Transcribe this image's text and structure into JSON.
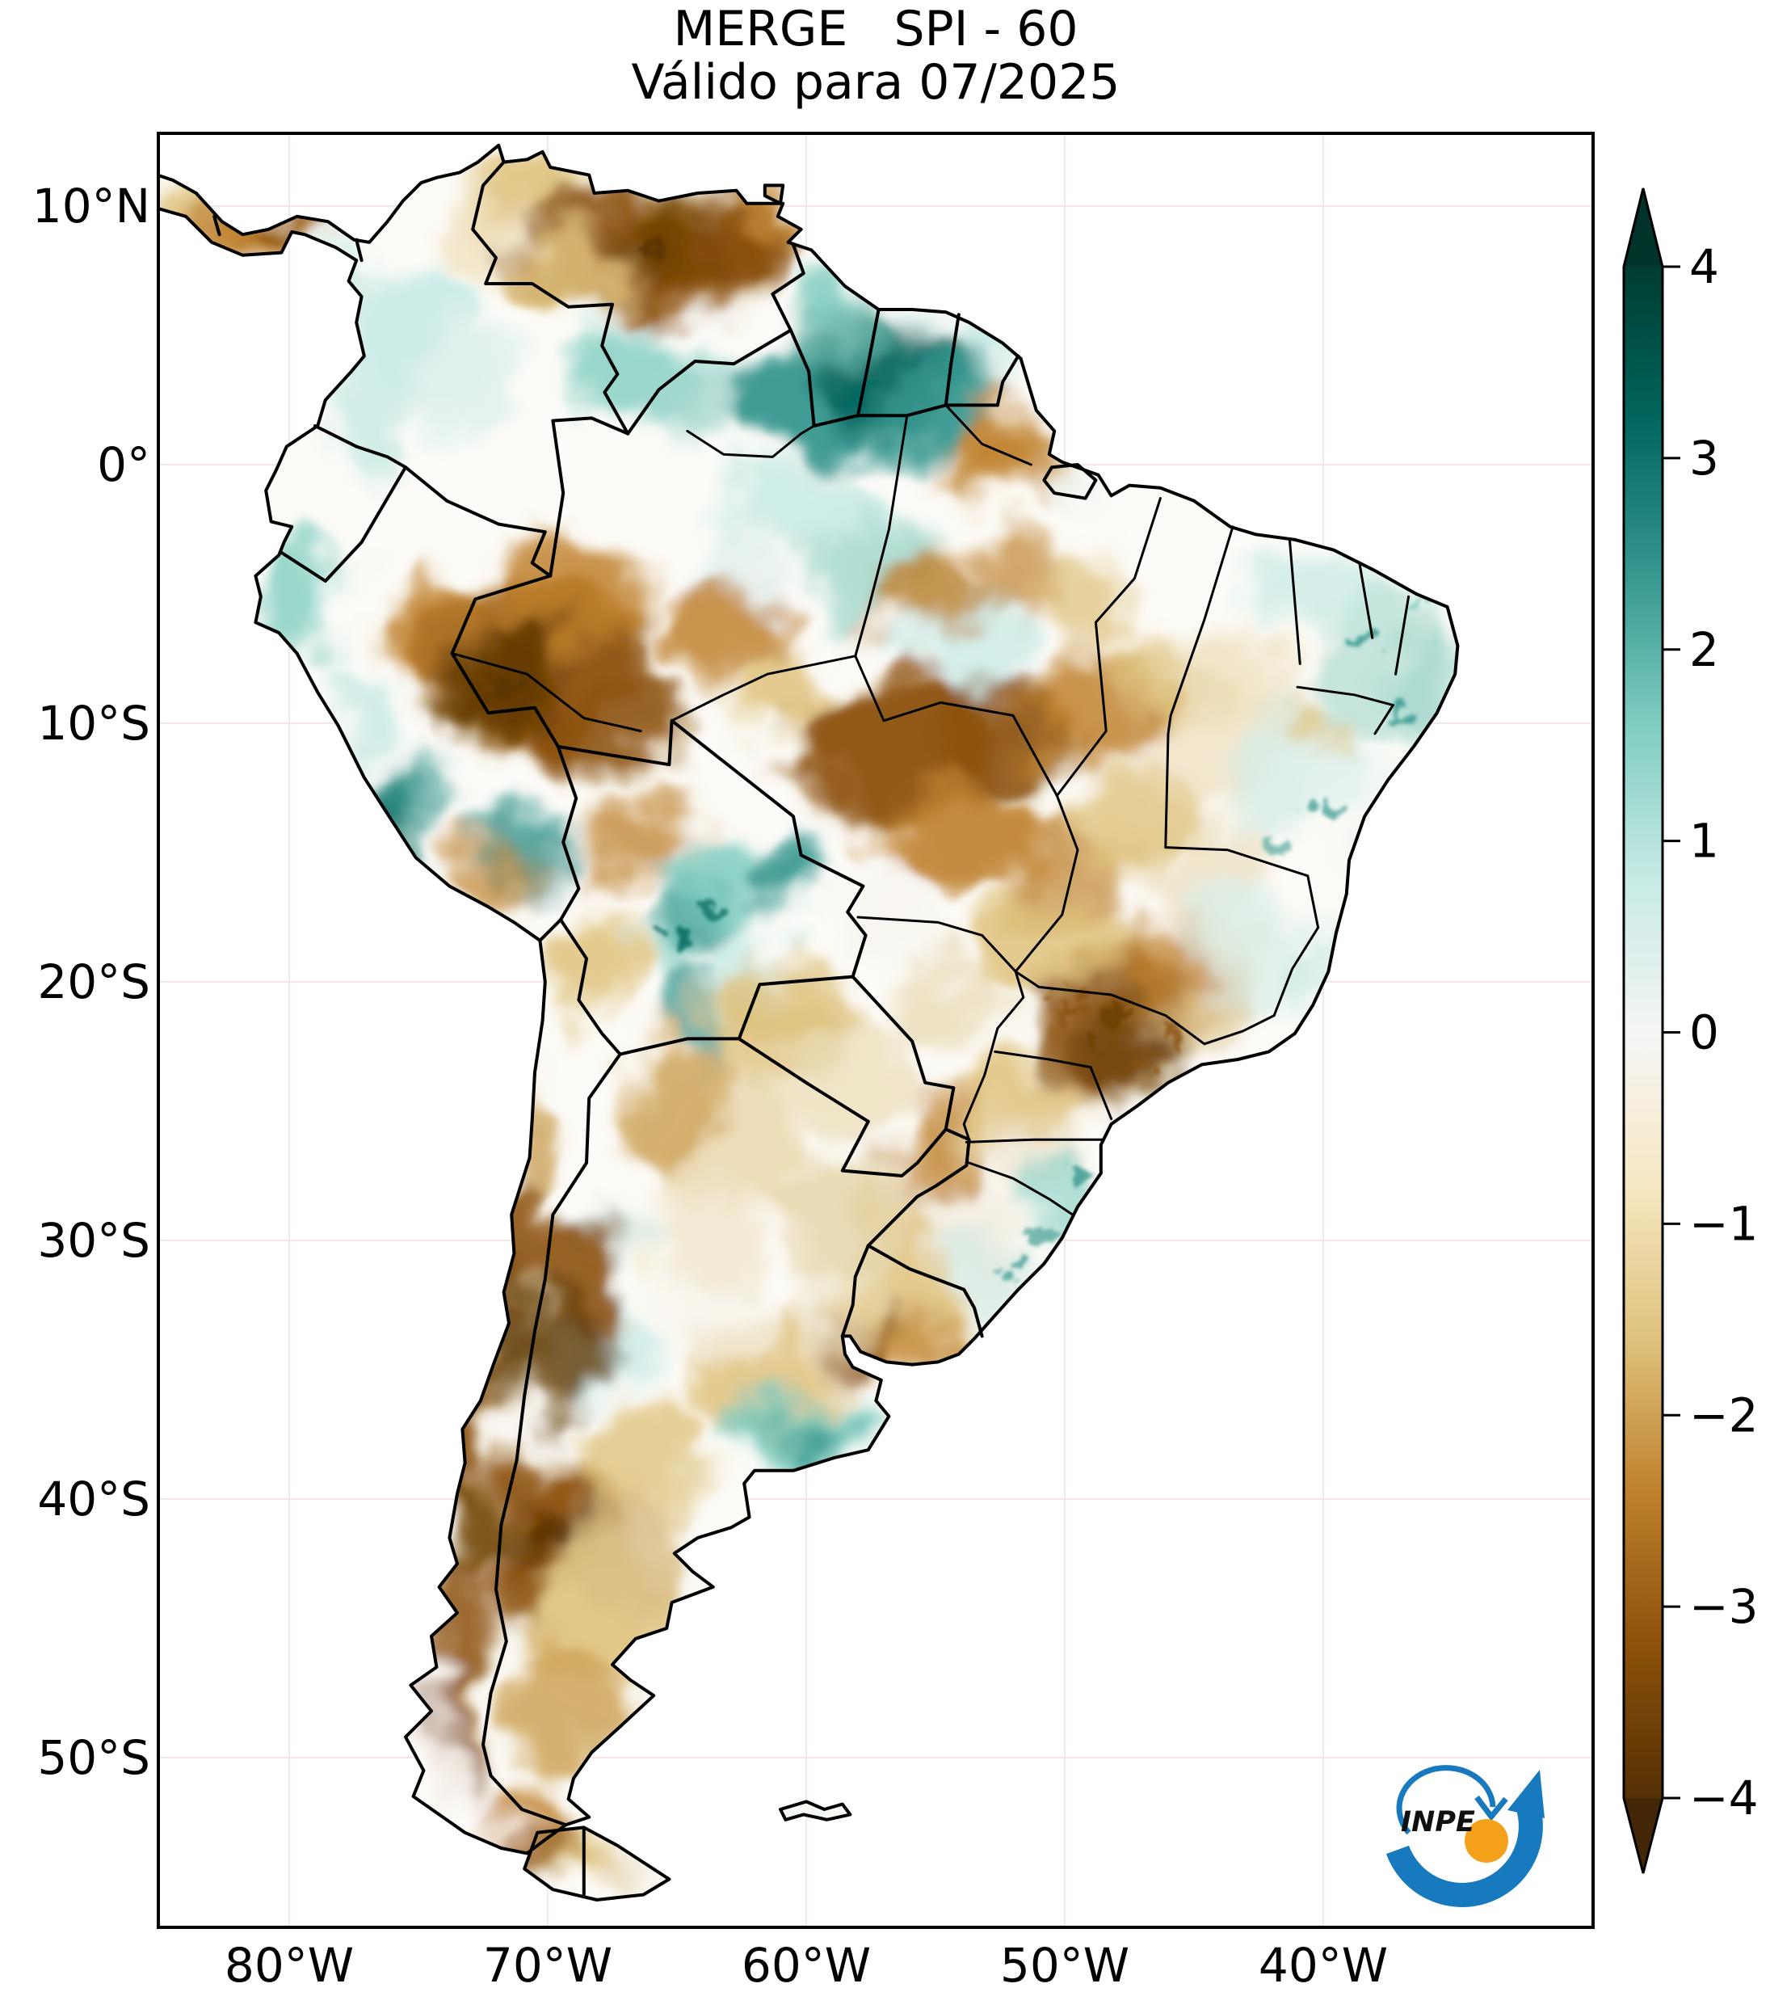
{
  "title": "MERGE   SPI - 60",
  "subtitle": "Válido para 07/2025",
  "axes": {
    "lat_ticks": [
      {
        "label": "10°N",
        "lat": 10
      },
      {
        "label": "0°",
        "lat": 0
      },
      {
        "label": "10°S",
        "lat": -10
      },
      {
        "label": "20°S",
        "lat": -20
      },
      {
        "label": "30°S",
        "lat": -30
      },
      {
        "label": "40°S",
        "lat": -40
      },
      {
        "label": "50°S",
        "lat": -50
      }
    ],
    "lon_ticks": [
      {
        "label": "80°W",
        "lon": -80
      },
      {
        "label": "70°W",
        "lon": -70
      },
      {
        "label": "60°W",
        "lon": -60
      },
      {
        "label": "50°W",
        "lon": -50
      },
      {
        "label": "40°W",
        "lon": -40
      }
    ]
  },
  "colorbar": {
    "min": -4,
    "max": 4,
    "ticks": [
      {
        "label": "4",
        "value": 4
      },
      {
        "label": "3",
        "value": 3
      },
      {
        "label": "2",
        "value": 2
      },
      {
        "label": "1",
        "value": 1
      },
      {
        "label": "0",
        "value": 0
      },
      {
        "label": "−1",
        "value": -1
      },
      {
        "label": "−2",
        "value": -2
      },
      {
        "label": "−3",
        "value": -3
      },
      {
        "label": "−4",
        "value": -4
      }
    ],
    "palette": [
      {
        "v": -4,
        "c": "#543005"
      },
      {
        "v": -3.2,
        "c": "#8c510a"
      },
      {
        "v": -2.4,
        "c": "#bf812d"
      },
      {
        "v": -1.6,
        "c": "#dfc27d"
      },
      {
        "v": -0.8,
        "c": "#f6e8c3"
      },
      {
        "v": 0,
        "c": "#f5f5f5"
      },
      {
        "v": 0.8,
        "c": "#c7eae5"
      },
      {
        "v": 1.6,
        "c": "#80cdc1"
      },
      {
        "v": 2.4,
        "c": "#35978f"
      },
      {
        "v": 3.2,
        "c": "#01665e"
      },
      {
        "v": 4,
        "c": "#003c30"
      }
    ],
    "over_color": "#01332a",
    "under_color": "#432605"
  },
  "logo": {
    "label": "INPE",
    "blue": "#1779be",
    "orange": "#f5a01b"
  }
}
